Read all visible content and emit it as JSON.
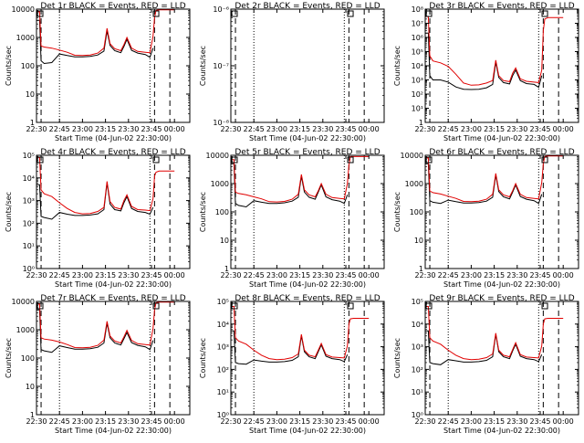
{
  "colors": {
    "events": "#000000",
    "lld": "#e00000",
    "frame": "#000000",
    "background": "#ffffff"
  },
  "x_tick_labels": [
    "22:30",
    "22:45",
    "23:00",
    "23:15",
    "23:30",
    "23:45",
    "00:00"
  ],
  "x_axis_label": "Start Time (04-Jun-02 22:30:00)",
  "y_axis_label": "Counts/sec",
  "chart_data": [
    {
      "type": "line",
      "title": "Det 1r BLACK = Events, RED = LLD",
      "yscale": "log",
      "ylim": [
        1,
        10000
      ],
      "y_tick_labels": [
        "1",
        "10",
        "100",
        "1000",
        "10000"
      ],
      "x": [
        "22:30",
        "22:31",
        "22:32",
        "22:33",
        "22:35",
        "22:40",
        "22:45",
        "22:50",
        "22:55",
        "23:00",
        "23:05",
        "23:10",
        "23:14",
        "23:16",
        "23:18",
        "23:21",
        "23:25",
        "23:27",
        "23:29",
        "23:32",
        "23:36",
        "23:41",
        "23:44",
        "23:46",
        "23:47",
        "23:48",
        "23:50",
        "23:55",
        "00:00"
      ],
      "series": [
        {
          "name": "Events",
          "values": [
            4000,
            4000,
            4000,
            150,
            120,
            130,
            260,
            230,
            205,
            205,
            215,
            240,
            330,
            1700,
            520,
            340,
            290,
            480,
            860,
            350,
            280,
            250,
            200,
            420,
            null,
            null,
            null,
            null,
            null
          ]
        },
        {
          "name": "LLD",
          "values": [
            8000,
            8000,
            8000,
            500,
            460,
            420,
            360,
            300,
            235,
            230,
            240,
            280,
            420,
            2100,
            600,
            400,
            340,
            560,
            1000,
            420,
            320,
            300,
            290,
            1100,
            5000,
            9000,
            9500,
            9500,
            9500
          ]
        }
      ]
    },
    {
      "type": "line",
      "title": "Det 2r BLACK = Events, RED = LLD",
      "yscale": "log",
      "ylim": [
        1e-08,
        1e-06
      ],
      "y_tick_labels": [
        "10⁻⁸",
        "10⁻⁷",
        "10⁻⁶"
      ],
      "x": [
        "22:30",
        "22:31",
        "22:32",
        "23:48",
        "23:49",
        "23:50"
      ],
      "series": [
        {
          "name": "Events",
          "values": [
            null,
            null,
            null,
            null,
            null,
            null
          ]
        },
        {
          "name": "LLD",
          "values": [
            null,
            null,
            null,
            null,
            null,
            null
          ]
        }
      ]
    },
    {
      "type": "line",
      "title": "Det 3r BLACK = Events, RED = LLD",
      "yscale": "log",
      "ylim": [
        1,
        100000000
      ],
      "y_tick_labels": [
        "1",
        "10¹",
        "10²",
        "10³",
        "10⁴",
        "10⁵",
        "10⁶",
        "10⁷",
        "10⁸"
      ],
      "x": [
        "22:30",
        "22:31",
        "22:32",
        "22:33",
        "22:35",
        "22:40",
        "22:45",
        "22:50",
        "22:55",
        "23:00",
        "23:05",
        "23:10",
        "23:14",
        "23:16",
        "23:18",
        "23:21",
        "23:25",
        "23:27",
        "23:29",
        "23:32",
        "23:36",
        "23:41",
        "23:44",
        "23:46",
        "23:47",
        "23:48",
        "23:50",
        "23:55",
        "00:00"
      ],
      "series": [
        {
          "name": "Events",
          "values": [
            2000000,
            2000000,
            2000000,
            2000,
            1000,
            1000,
            700,
            320,
            220,
            210,
            220,
            280,
            480,
            18000,
            1500,
            650,
            520,
            2000,
            5000,
            900,
            550,
            480,
            300,
            2000,
            null,
            null,
            null,
            null,
            null
          ]
        },
        {
          "name": "LLD",
          "values": [
            30000000,
            30000000,
            30000000,
            50000,
            22000,
            16000,
            9000,
            2500,
            600,
            420,
            450,
            600,
            900,
            25000,
            2000,
            900,
            750,
            3000,
            7000,
            1200,
            800,
            700,
            650,
            5000,
            3000000,
            20000000,
            25000000,
            25000000,
            25000000
          ]
        }
      ]
    },
    {
      "type": "line",
      "title": "Det 4r BLACK = Events, RED = LLD",
      "yscale": "log",
      "ylim": [
        1,
        100000
      ],
      "y_tick_labels": [
        "10⁰",
        "10¹",
        "10²",
        "10³",
        "10⁴",
        "10⁵"
      ],
      "x": [
        "22:30",
        "22:31",
        "22:32",
        "22:33",
        "22:35",
        "22:40",
        "22:45",
        "22:50",
        "22:55",
        "23:00",
        "23:05",
        "23:10",
        "23:14",
        "23:16",
        "23:18",
        "23:21",
        "23:25",
        "23:27",
        "23:29",
        "23:32",
        "23:36",
        "23:41",
        "23:44",
        "23:46",
        "23:47",
        "23:48",
        "23:50",
        "23:55",
        "00:00"
      ],
      "series": [
        {
          "name": "Events",
          "values": [
            5000,
            5000,
            5000,
            200,
            180,
            150,
            300,
            250,
            220,
            220,
            230,
            260,
            400,
            6000,
            700,
            400,
            350,
            800,
            1500,
            450,
            330,
            300,
            250,
            500,
            null,
            null,
            null,
            null,
            null
          ]
        },
        {
          "name": "LLD",
          "values": [
            80000,
            80000,
            80000,
            3000,
            2000,
            1500,
            800,
            450,
            300,
            260,
            270,
            330,
            500,
            7000,
            900,
            500,
            420,
            1000,
            1800,
            550,
            400,
            380,
            360,
            1200,
            12000,
            18000,
            20000,
            20000,
            20000
          ]
        }
      ]
    },
    {
      "type": "line",
      "title": "Det 5r BLACK = Events, RED = LLD",
      "yscale": "log",
      "ylim": [
        1,
        10000
      ],
      "y_tick_labels": [
        "1",
        "10",
        "100",
        "1000",
        "10000"
      ],
      "x": [
        "22:30",
        "22:31",
        "22:32",
        "22:33",
        "22:35",
        "22:40",
        "22:45",
        "22:50",
        "22:55",
        "23:00",
        "23:05",
        "23:10",
        "23:14",
        "23:16",
        "23:18",
        "23:21",
        "23:25",
        "23:27",
        "23:29",
        "23:32",
        "23:36",
        "23:41",
        "23:44",
        "23:46",
        "23:47",
        "23:48",
        "23:50",
        "23:55",
        "00:00"
      ],
      "series": [
        {
          "name": "Events",
          "values": [
            5000,
            5000,
            5000,
            200,
            170,
            150,
            250,
            220,
            200,
            200,
            210,
            240,
            330,
            1800,
            500,
            330,
            280,
            500,
            900,
            340,
            270,
            240,
            200,
            400,
            null,
            null,
            null,
            null,
            null
          ]
        },
        {
          "name": "LLD",
          "values": [
            7000,
            7000,
            7000,
            500,
            450,
            400,
            340,
            290,
            230,
            225,
            235,
            280,
            420,
            2100,
            600,
            400,
            340,
            560,
            1000,
            420,
            320,
            300,
            290,
            1000,
            4500,
            9000,
            9000,
            9000,
            9000
          ]
        }
      ]
    },
    {
      "type": "line",
      "title": "Det 6r BLACK = Events, RED = LLD",
      "yscale": "log",
      "ylim": [
        1,
        10000
      ],
      "y_tick_labels": [
        "1",
        "10",
        "100",
        "1000",
        "10000"
      ],
      "x": [
        "22:30",
        "22:31",
        "22:32",
        "22:33",
        "22:35",
        "22:40",
        "22:45",
        "22:50",
        "22:55",
        "23:00",
        "23:05",
        "23:10",
        "23:14",
        "23:16",
        "23:18",
        "23:21",
        "23:25",
        "23:27",
        "23:29",
        "23:32",
        "23:36",
        "23:41",
        "23:44",
        "23:46",
        "23:47",
        "23:48",
        "23:50",
        "23:55",
        "00:00"
      ],
      "series": [
        {
          "name": "Events",
          "values": [
            5000,
            5000,
            5000,
            250,
            220,
            200,
            260,
            230,
            205,
            205,
            215,
            240,
            330,
            2000,
            520,
            340,
            290,
            500,
            900,
            350,
            280,
            250,
            200,
            420,
            null,
            null,
            null,
            null,
            null
          ]
        },
        {
          "name": "LLD",
          "values": [
            8000,
            8000,
            8000,
            550,
            480,
            430,
            360,
            300,
            235,
            230,
            240,
            280,
            420,
            2300,
            600,
            400,
            340,
            560,
            1000,
            420,
            320,
            300,
            290,
            1100,
            5000,
            9000,
            9500,
            9500,
            9500
          ]
        }
      ]
    },
    {
      "type": "line",
      "title": "Det 7r BLACK = Events, RED = LLD",
      "yscale": "log",
      "ylim": [
        1,
        10000
      ],
      "y_tick_labels": [
        "1",
        "10",
        "100",
        "1000",
        "10000"
      ],
      "x": [
        "22:30",
        "22:31",
        "22:32",
        "22:33",
        "22:35",
        "22:40",
        "22:45",
        "22:50",
        "22:55",
        "23:00",
        "23:05",
        "23:10",
        "23:14",
        "23:16",
        "23:18",
        "23:21",
        "23:25",
        "23:27",
        "23:29",
        "23:32",
        "23:36",
        "23:41",
        "23:44",
        "23:46",
        "23:47",
        "23:48",
        "23:50",
        "23:55",
        "00:00"
      ],
      "series": [
        {
          "name": "Events",
          "values": [
            5000,
            5000,
            5000,
            200,
            180,
            160,
            270,
            235,
            205,
            205,
            215,
            240,
            340,
            1700,
            520,
            340,
            290,
            480,
            800,
            350,
            280,
            250,
            200,
            420,
            null,
            null,
            null,
            null,
            null
          ]
        },
        {
          "name": "LLD",
          "values": [
            8000,
            8000,
            8000,
            520,
            470,
            430,
            370,
            300,
            235,
            230,
            240,
            280,
            430,
            2000,
            600,
            400,
            340,
            560,
            950,
            420,
            320,
            300,
            290,
            1100,
            5000,
            9000,
            9500,
            9500,
            9500
          ]
        }
      ]
    },
    {
      "type": "line",
      "title": "Det 8r BLACK = Events, RED = LLD",
      "yscale": "log",
      "ylim": [
        1,
        100000
      ],
      "y_tick_labels": [
        "10⁰",
        "10¹",
        "10²",
        "10³",
        "10⁴",
        "10⁵"
      ],
      "x": [
        "22:30",
        "22:31",
        "22:32",
        "22:33",
        "22:35",
        "22:40",
        "22:45",
        "22:50",
        "22:55",
        "23:00",
        "23:05",
        "23:10",
        "23:14",
        "23:16",
        "23:18",
        "23:21",
        "23:25",
        "23:27",
        "23:29",
        "23:32",
        "23:36",
        "23:41",
        "23:44",
        "23:46",
        "23:47",
        "23:48",
        "23:50",
        "23:55",
        "00:00"
      ],
      "series": [
        {
          "name": "Events",
          "values": [
            5000,
            5000,
            5000,
            200,
            180,
            170,
            260,
            230,
            210,
            210,
            220,
            250,
            360,
            3000,
            600,
            360,
            300,
            600,
            1200,
            380,
            300,
            270,
            220,
            450,
            null,
            null,
            null,
            null,
            null
          ]
        },
        {
          "name": "LLD",
          "values": [
            60000,
            60000,
            60000,
            2500,
            1800,
            1300,
            700,
            420,
            300,
            270,
            280,
            330,
            480,
            3500,
            700,
            420,
            360,
            700,
            1400,
            450,
            350,
            330,
            320,
            1100,
            10000,
            17000,
            18000,
            18000,
            18000
          ]
        }
      ]
    },
    {
      "type": "line",
      "title": "Det 9r BLACK = Events, RED = LLD",
      "yscale": "log",
      "ylim": [
        1,
        100000
      ],
      "y_tick_labels": [
        "10⁰",
        "10¹",
        "10²",
        "10³",
        "10⁴",
        "10⁵"
      ],
      "x": [
        "22:30",
        "22:31",
        "22:32",
        "22:33",
        "22:35",
        "22:40",
        "22:45",
        "22:50",
        "22:55",
        "23:00",
        "23:05",
        "23:10",
        "23:14",
        "23:16",
        "23:18",
        "23:21",
        "23:25",
        "23:27",
        "23:29",
        "23:32",
        "23:36",
        "23:41",
        "23:44",
        "23:46",
        "23:47",
        "23:48",
        "23:50",
        "23:55",
        "00:00"
      ],
      "series": [
        {
          "name": "Events",
          "values": [
            5000,
            5000,
            5000,
            200,
            180,
            160,
            270,
            240,
            210,
            210,
            220,
            250,
            360,
            3500,
            600,
            360,
            300,
            650,
            1300,
            380,
            300,
            270,
            220,
            450,
            null,
            null,
            null,
            null,
            null
          ]
        },
        {
          "name": "LLD",
          "values": [
            60000,
            60000,
            60000,
            2500,
            1800,
            1300,
            700,
            420,
            300,
            270,
            280,
            330,
            480,
            4000,
            700,
            420,
            360,
            750,
            1500,
            450,
            350,
            330,
            320,
            1100,
            10000,
            17000,
            18000,
            18000,
            18000
          ]
        }
      ]
    }
  ]
}
